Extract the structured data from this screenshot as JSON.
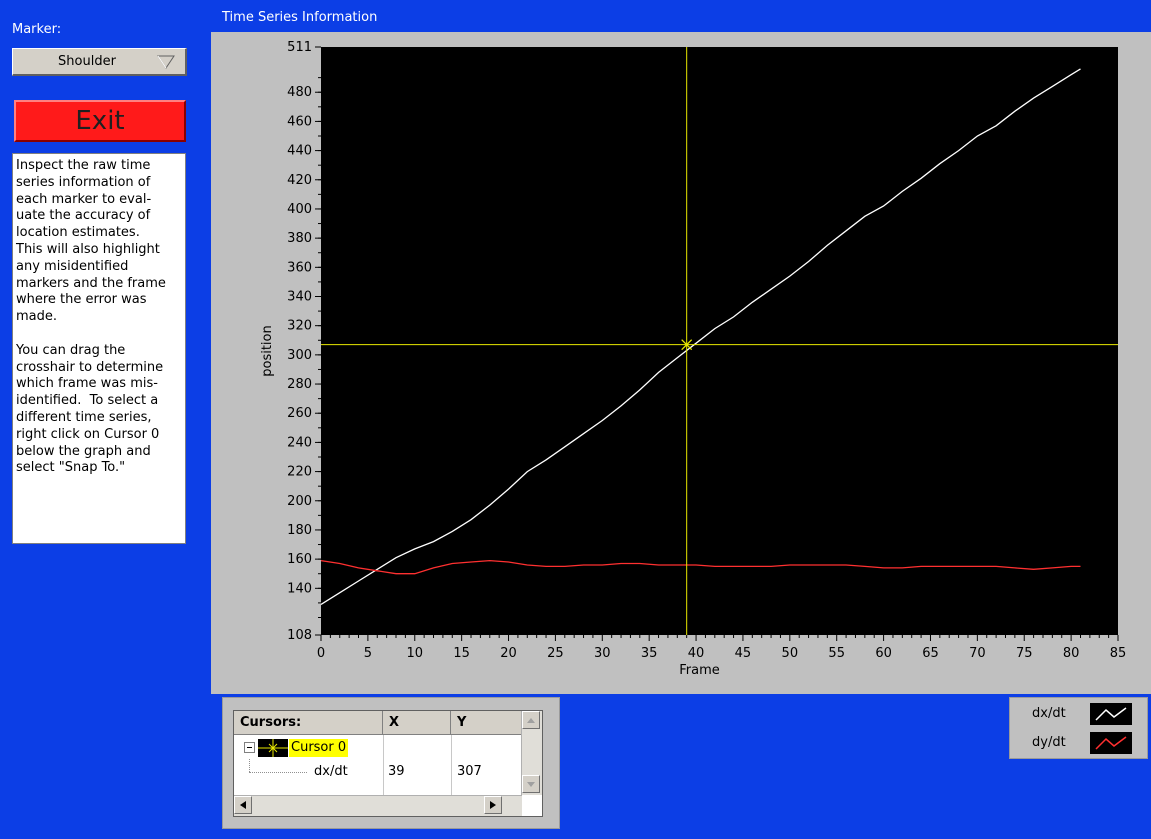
{
  "marker": {
    "label": "Marker:",
    "selected": "Shoulder"
  },
  "exit_label": "Exit",
  "instructions": "Inspect the raw time\nseries information of\neach marker to eval-\nuate the accuracy of\nlocation estimates.\nThis will also highlight\nany misidentified\nmarkers and the frame\nwhere the error was\nmade.\n\nYou can drag the\ncrosshair to determine\nwhich frame was mis-\nidentified.  To select a\ndifferent time series,\nright click on Cursor 0\nbelow the graph and\nselect \"Snap To.\"",
  "graph": {
    "title": "Time Series Information",
    "background": "#000000",
    "panel_color": "#c0c0c0",
    "cursor_color": "#e8e800"
  },
  "chart_data": {
    "type": "line",
    "xlabel": "Frame",
    "ylabel": "position",
    "xlim": [
      0,
      85
    ],
    "ylim": [
      108,
      511
    ],
    "xticks": [
      0,
      5,
      10,
      15,
      20,
      25,
      30,
      35,
      40,
      45,
      50,
      55,
      60,
      65,
      70,
      75,
      80,
      85
    ],
    "yticks": [
      108,
      140,
      160,
      180,
      200,
      220,
      240,
      260,
      280,
      300,
      320,
      340,
      360,
      380,
      400,
      420,
      440,
      460,
      480,
      511
    ],
    "series": [
      {
        "name": "dx/dt",
        "color": "#ffffff",
        "x": [
          0,
          2,
          4,
          6,
          8,
          10,
          12,
          14,
          16,
          18,
          20,
          22,
          24,
          26,
          28,
          30,
          32,
          34,
          36,
          38,
          40,
          42,
          44,
          46,
          48,
          50,
          52,
          54,
          56,
          58,
          60,
          62,
          64,
          66,
          68,
          70,
          72,
          74,
          76,
          78,
          80,
          81
        ],
        "values": [
          129,
          137,
          145,
          153,
          161,
          167,
          172,
          179,
          187,
          197,
          208,
          220,
          228,
          237,
          246,
          255,
          265,
          276,
          288,
          298,
          308,
          318,
          326,
          336,
          345,
          354,
          364,
          375,
          385,
          395,
          402,
          412,
          421,
          431,
          440,
          450,
          457,
          467,
          476,
          484,
          492,
          496
        ]
      },
      {
        "name": "dy/dt",
        "color": "#ff3030",
        "x": [
          0,
          2,
          4,
          6,
          8,
          10,
          12,
          14,
          16,
          18,
          20,
          22,
          24,
          26,
          28,
          30,
          32,
          34,
          36,
          38,
          40,
          42,
          44,
          46,
          48,
          50,
          52,
          54,
          56,
          58,
          60,
          62,
          64,
          66,
          68,
          70,
          72,
          74,
          76,
          78,
          80,
          81
        ],
        "values": [
          159,
          157,
          154,
          152,
          150,
          150,
          154,
          157,
          158,
          159,
          158,
          156,
          155,
          155,
          156,
          156,
          157,
          157,
          156,
          156,
          156,
          155,
          155,
          155,
          155,
          156,
          156,
          156,
          156,
          155,
          154,
          154,
          155,
          155,
          155,
          155,
          155,
          154,
          153,
          154,
          155,
          155
        ]
      }
    ],
    "cursor": {
      "name": "Cursor 0",
      "x": 39,
      "y": 307
    }
  },
  "cursors_table": {
    "headers": [
      "Cursors:",
      "X",
      "Y"
    ],
    "cursor_name": "Cursor 0",
    "row": {
      "label": "dx/dt",
      "x": "39",
      "y": "307"
    }
  },
  "legend": [
    {
      "label": "dx/dt",
      "color": "#ffffff"
    },
    {
      "label": "dy/dt",
      "color": "#ff3030"
    }
  ]
}
